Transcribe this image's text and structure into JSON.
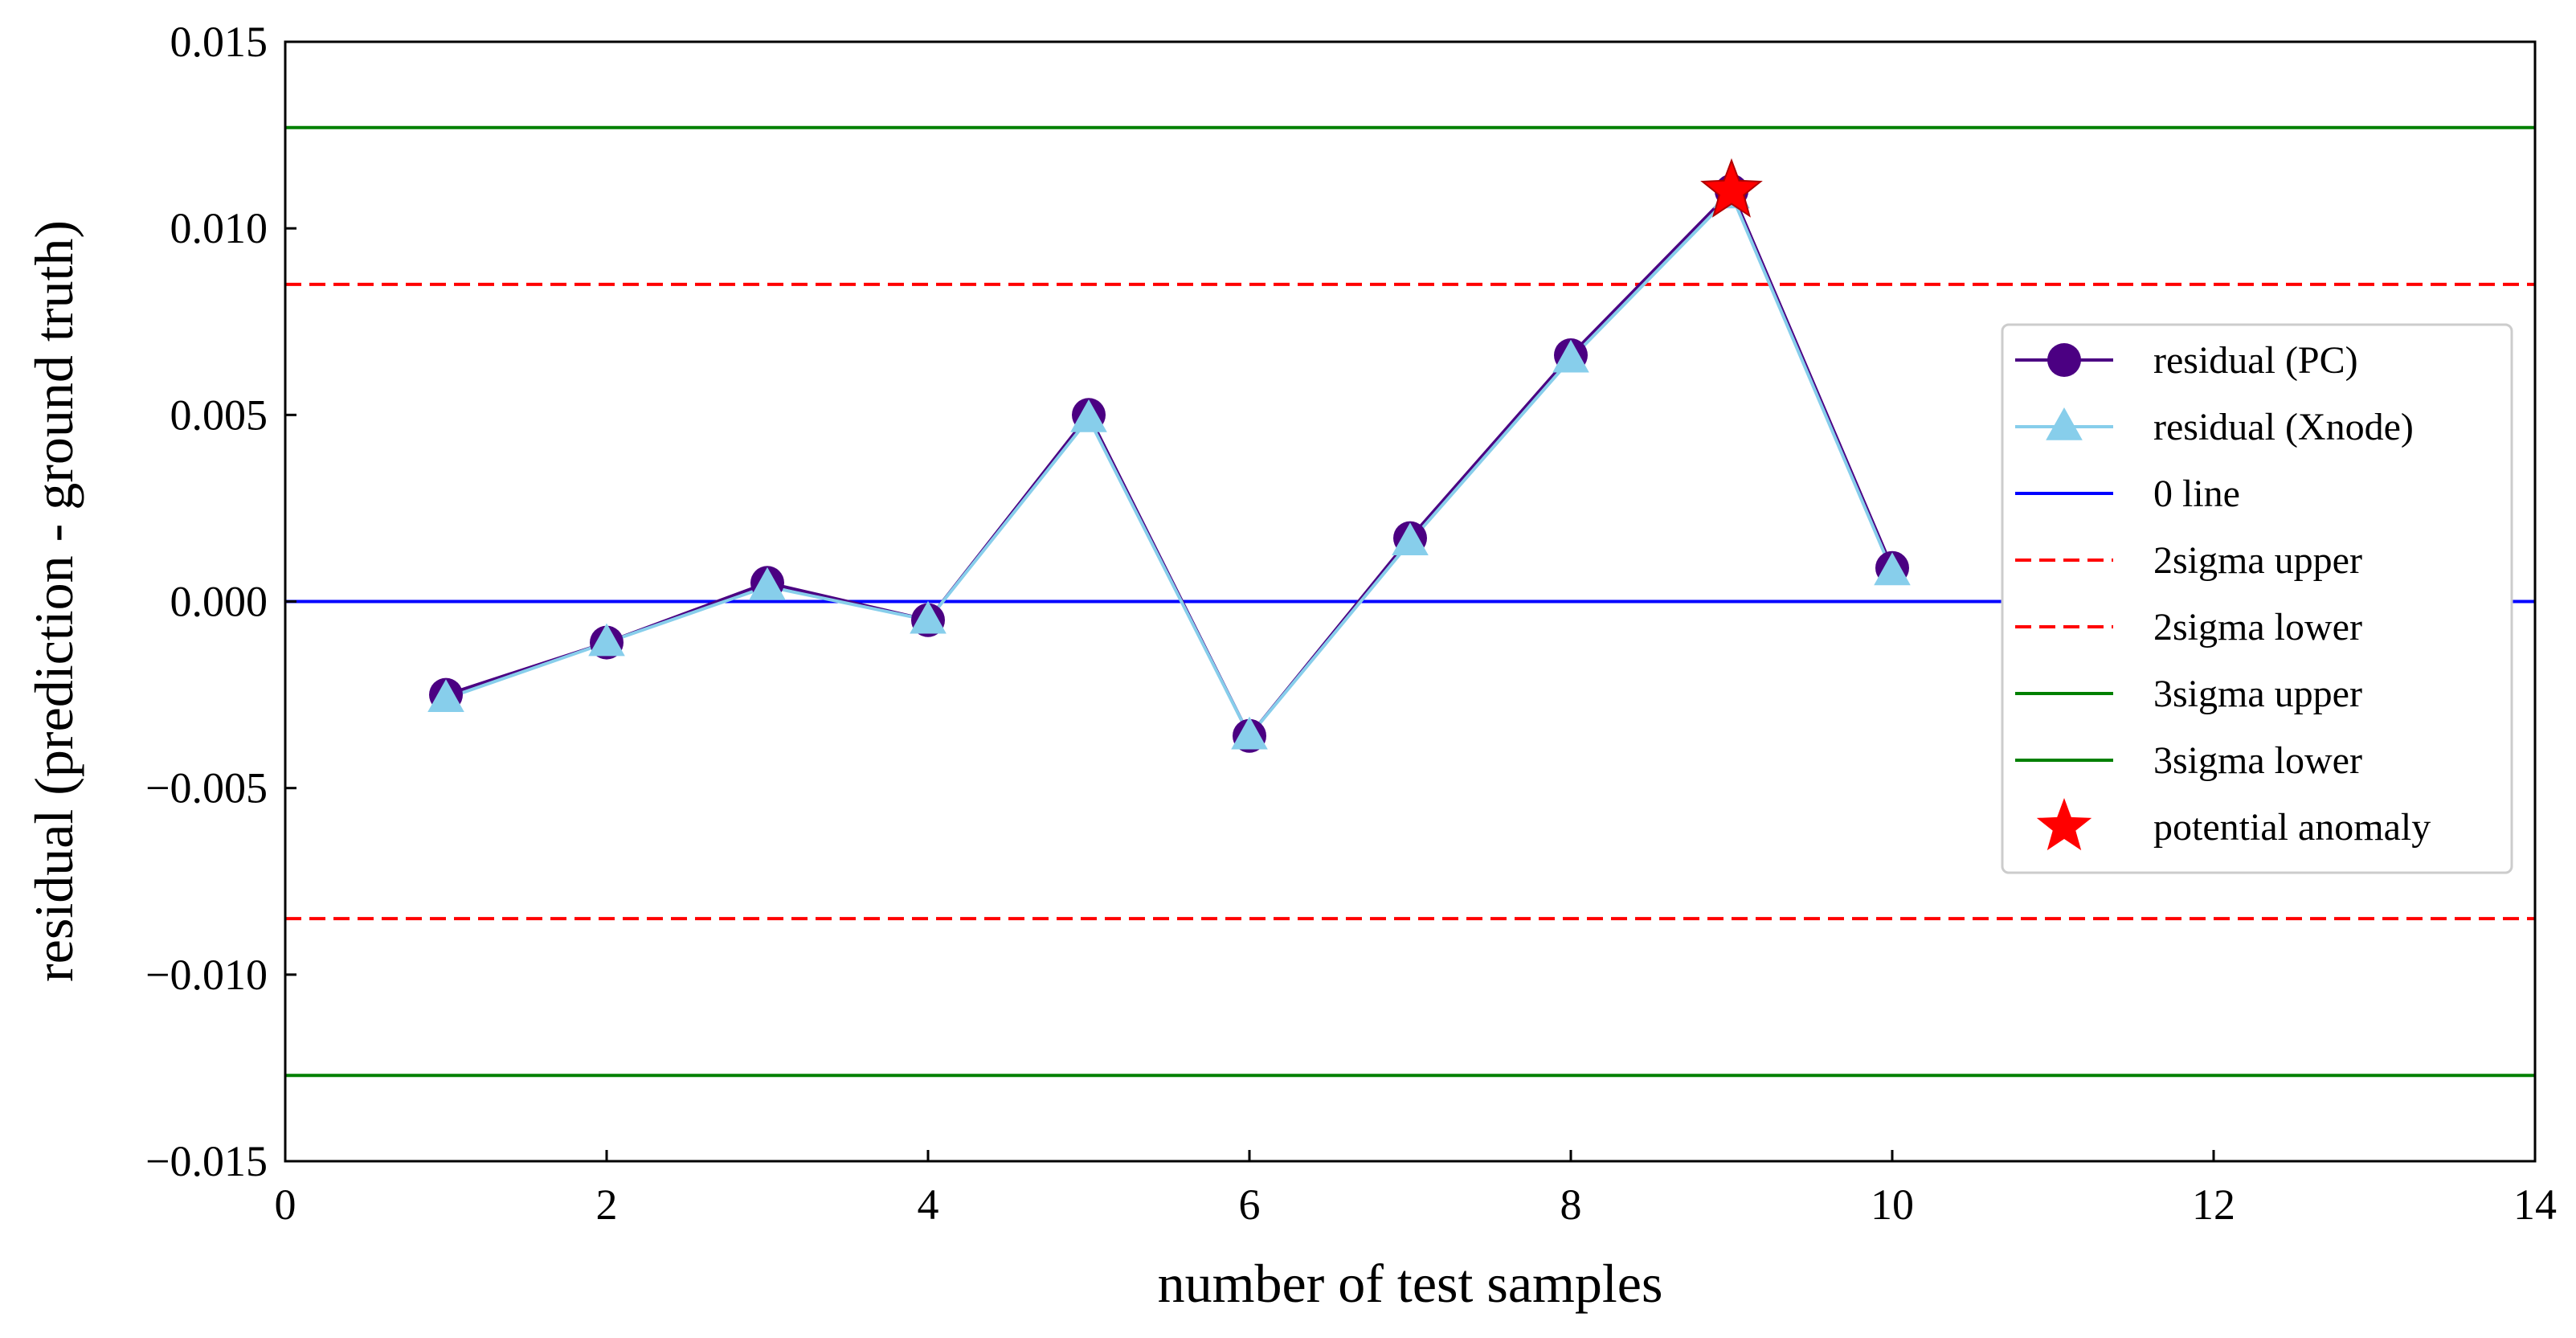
{
  "chart_data": {
    "type": "line",
    "title": "",
    "xlabel": "number of test samples",
    "ylabel": "residual (prediction - ground truth)",
    "xlim": [
      0,
      14
    ],
    "ylim": [
      -0.015,
      0.015
    ],
    "xticks": [
      0,
      2,
      4,
      6,
      8,
      10,
      12,
      14
    ],
    "xtick_labels": [
      "0",
      "2",
      "4",
      "6",
      "8",
      "10",
      "12",
      "14"
    ],
    "yticks": [
      -0.015,
      -0.01,
      -0.005,
      0.0,
      0.005,
      0.01,
      0.015
    ],
    "ytick_labels": [
      "−0.015",
      "−0.010",
      "−0.005",
      "0.000",
      "0.005",
      "0.010",
      "0.015"
    ],
    "grid": false,
    "legend_position": "right",
    "x": [
      1,
      2,
      3,
      4,
      5,
      6,
      7,
      8,
      9,
      10
    ],
    "series": [
      {
        "name": "residual (PC)",
        "color": "#4b0082",
        "marker": "circle",
        "values": [
          -0.0025,
          -0.0011,
          0.0005,
          -0.0005,
          0.005,
          -0.0036,
          0.0017,
          0.0066,
          0.011,
          0.0009
        ]
      },
      {
        "name": "residual (Xnode)",
        "color": "#87ceeb",
        "marker": "triangle",
        "values": [
          -0.0026,
          -0.0011,
          0.0004,
          -0.0005,
          0.0049,
          -0.0036,
          0.0016,
          0.0065,
          0.0109,
          0.0008
        ]
      }
    ],
    "reference_lines": [
      {
        "name": "0 line",
        "value": 0.0,
        "color": "#0000ff",
        "style": "solid"
      },
      {
        "name": "2sigma upper",
        "value": 0.0085,
        "color": "#ff0000",
        "style": "dashed"
      },
      {
        "name": "2sigma lower",
        "value": -0.0085,
        "color": "#ff0000",
        "style": "dashed"
      },
      {
        "name": "3sigma upper",
        "value": 0.0127,
        "color": "#008000",
        "style": "solid"
      },
      {
        "name": "3sigma lower",
        "value": -0.0127,
        "color": "#008000",
        "style": "solid"
      }
    ],
    "anomalies": {
      "name": "potential anomaly",
      "color": "#ff0000",
      "marker": "star",
      "points": [
        {
          "x": 9,
          "y": 0.011
        }
      ]
    }
  }
}
